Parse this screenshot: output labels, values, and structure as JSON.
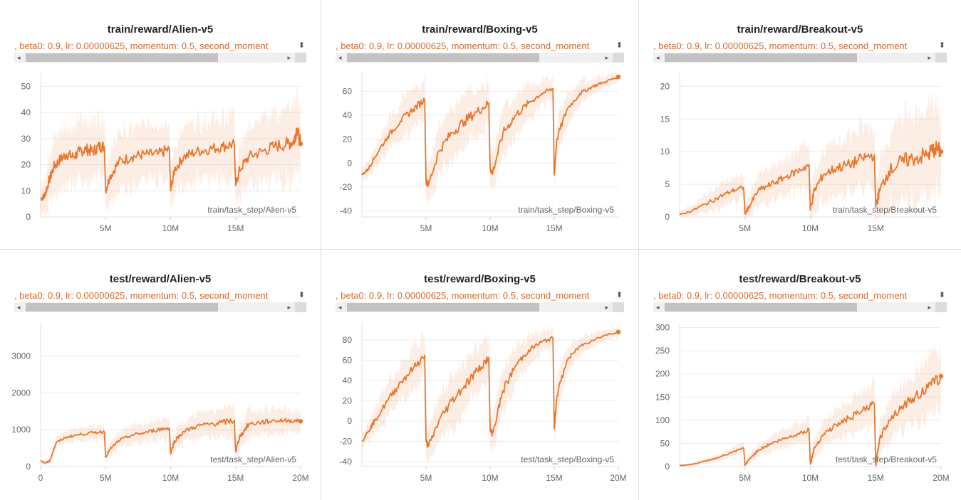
{
  "chart_data": [
    {
      "type": "line",
      "title": "train/reward/Alien-v5",
      "legend": ", beta0: 0.9, lr: 0.00000625, momentum: 0.5, second_moment",
      "xlabel": "train/task_step/Alien-v5",
      "xlim": [
        0,
        20000000
      ],
      "ylim": [
        0,
        55
      ],
      "xticks": [
        {
          "v": 5000000,
          "label": "5M"
        },
        {
          "v": 10000000,
          "label": "10M"
        },
        {
          "v": 15000000,
          "label": "15M"
        }
      ],
      "yticks": [
        0,
        10,
        20,
        30,
        40,
        50
      ],
      "series": [
        {
          "color": "#e8762d",
          "x": [
            0,
            300000,
            600000,
            1000000,
            1500000,
            2000000,
            2500000,
            3000000,
            3500000,
            4000000,
            4500000,
            4900000,
            5000000,
            5300000,
            6000000,
            7000000,
            8000000,
            9000000,
            9900000,
            10000000,
            10300000,
            11000000,
            12000000,
            13000000,
            14000000,
            14900000,
            15000000,
            15300000,
            16000000,
            17000000,
            18000000,
            19000000,
            19500000,
            19700000,
            20000000
          ],
          "y": [
            7,
            8,
            13,
            19,
            22,
            24,
            23,
            25,
            26,
            25,
            27,
            27,
            10,
            15,
            21,
            23,
            24,
            24,
            26,
            10,
            18,
            23,
            25,
            26,
            27,
            28,
            12,
            18,
            23,
            25,
            27,
            28,
            29,
            34,
            28
          ],
          "band": [
            6,
            8,
            10,
            12,
            12,
            12,
            12,
            13,
            13,
            13,
            13,
            13,
            8,
            10,
            12,
            12,
            12,
            12,
            13,
            8,
            10,
            12,
            12,
            12,
            13,
            13,
            9,
            11,
            12,
            13,
            14,
            15,
            16,
            16,
            15
          ]
        }
      ]
    },
    {
      "type": "line",
      "title": "train/reward/Boxing-v5",
      "legend": ", beta0: 0.9, lr: 0.00000625, momentum: 0.5, second_moment",
      "xlabel": "train/task_step/Boxing-v5",
      "xlim": [
        0,
        20000000
      ],
      "ylim": [
        -45,
        75
      ],
      "xticks": [
        {
          "v": 5000000,
          "label": "5M"
        },
        {
          "v": 10000000,
          "label": "10M"
        },
        {
          "v": 15000000,
          "label": "15M"
        }
      ],
      "yticks": [
        -40,
        -20,
        0,
        20,
        40,
        60
      ],
      "series": [
        {
          "color": "#e8762d",
          "x": [
            0,
            500000,
            1000000,
            2000000,
            3000000,
            4000000,
            4900000,
            5000000,
            5200000,
            6000000,
            7000000,
            8000000,
            9000000,
            9900000,
            10000000,
            10200000,
            11000000,
            12000000,
            13000000,
            14000000,
            14900000,
            15000000,
            15200000,
            16000000,
            17000000,
            18000000,
            19000000,
            20000000
          ],
          "y": [
            -10,
            -5,
            5,
            22,
            35,
            45,
            53,
            -15,
            -18,
            10,
            25,
            35,
            43,
            50,
            -5,
            -8,
            25,
            40,
            50,
            58,
            62,
            -10,
            20,
            45,
            58,
            64,
            68,
            72
          ],
          "band": [
            6,
            8,
            10,
            14,
            16,
            18,
            18,
            15,
            18,
            22,
            25,
            25,
            22,
            20,
            15,
            18,
            22,
            20,
            16,
            12,
            10,
            12,
            18,
            14,
            10,
            8,
            6,
            5
          ]
        }
      ]
    },
    {
      "type": "line",
      "title": "train/reward/Breakout-v5",
      "legend": ", beta0: 0.9, lr: 0.00000625, momentum: 0.5, second_moment",
      "xlabel": "train/task_step/Breakout-v5",
      "xlim": [
        0,
        20000000
      ],
      "ylim": [
        0,
        22
      ],
      "xticks": [
        {
          "v": 5000000,
          "label": "5M"
        },
        {
          "v": 10000000,
          "label": "10M"
        },
        {
          "v": 15000000,
          "label": "15M"
        }
      ],
      "yticks": [
        0,
        5,
        10,
        15,
        20
      ],
      "series": [
        {
          "color": "#e8762d",
          "x": [
            0,
            1000000,
            2000000,
            3000000,
            4000000,
            4900000,
            5000000,
            5300000,
            6000000,
            7000000,
            8000000,
            9000000,
            9900000,
            10000000,
            10300000,
            11000000,
            12000000,
            13000000,
            14000000,
            14900000,
            15000000,
            15300000,
            16000000,
            17000000,
            18000000,
            19000000,
            19500000,
            20000000
          ],
          "y": [
            0.3,
            1,
            2,
            3,
            4,
            4.5,
            0.5,
            1.5,
            4,
            5,
            6,
            7,
            8,
            1,
            4,
            6.5,
            7.5,
            8,
            9,
            9.5,
            1.5,
            4,
            7,
            8.5,
            9,
            9.5,
            10.5,
            10
          ],
          "band": [
            0.5,
            1,
            1.5,
            2,
            2,
            2,
            1.5,
            2,
            2.5,
            3,
            3,
            3.5,
            4,
            3,
            3.5,
            4,
            4.5,
            5,
            5,
            5,
            4,
            5,
            6,
            7,
            7,
            8,
            8,
            7
          ]
        }
      ]
    },
    {
      "type": "line",
      "title": "test/reward/Alien-v5",
      "legend": ", beta0: 0.9, lr: 0.00000625, momentum: 0.5, second_moment",
      "xlabel": "test/task_step/Alien-v5",
      "xlim": [
        0,
        20000000
      ],
      "ylim": [
        0,
        3900
      ],
      "xticks": [
        {
          "v": 0,
          "label": "0"
        },
        {
          "v": 5000000,
          "label": "5M"
        },
        {
          "v": 10000000,
          "label": "10M"
        },
        {
          "v": 15000000,
          "label": "15M"
        },
        {
          "v": 20000000,
          "label": "20M"
        }
      ],
      "yticks": [
        0,
        1000,
        2000,
        3000
      ],
      "series": [
        {
          "color": "#e8762d",
          "x": [
            0,
            300000,
            700000,
            1200000,
            2000000,
            3000000,
            4000000,
            4900000,
            5000000,
            5300000,
            6000000,
            7000000,
            8000000,
            9000000,
            9900000,
            10000000,
            10300000,
            11000000,
            12000000,
            13000000,
            14000000,
            14900000,
            15000000,
            15300000,
            16000000,
            17000000,
            18000000,
            19000000,
            20000000
          ],
          "y": [
            150,
            100,
            150,
            650,
            800,
            870,
            920,
            950,
            250,
            450,
            700,
            850,
            920,
            1000,
            1050,
            350,
            700,
            950,
            1100,
            1150,
            1200,
            1250,
            400,
            800,
            1150,
            1200,
            1250,
            1250,
            1230
          ],
          "band": [
            60,
            60,
            100,
            150,
            180,
            200,
            220,
            220,
            150,
            200,
            250,
            260,
            280,
            300,
            320,
            250,
            300,
            320,
            360,
            400,
            450,
            500,
            350,
            380,
            420,
            400,
            360,
            320,
            300
          ]
        }
      ]
    },
    {
      "type": "line",
      "title": "test/reward/Boxing-v5",
      "legend": ", beta0: 0.9, lr: 0.00000625, momentum: 0.5, second_moment",
      "xlabel": "test/task_step/Boxing-v5",
      "xlim": [
        0,
        20000000
      ],
      "ylim": [
        -45,
        97
      ],
      "xticks": [
        {
          "v": 5000000,
          "label": "5M"
        },
        {
          "v": 10000000,
          "label": "10M"
        },
        {
          "v": 15000000,
          "label": "15M"
        },
        {
          "v": 20000000,
          "label": "20M"
        }
      ],
      "yticks": [
        -40,
        -20,
        0,
        20,
        40,
        60,
        80
      ],
      "series": [
        {
          "color": "#e8762d",
          "x": [
            0,
            500000,
            1000000,
            2000000,
            3000000,
            4000000,
            4900000,
            5000000,
            5200000,
            6000000,
            7000000,
            8000000,
            9000000,
            9900000,
            10000000,
            10200000,
            11000000,
            12000000,
            13000000,
            14000000,
            14900000,
            15000000,
            15200000,
            16000000,
            17000000,
            18000000,
            19000000,
            20000000
          ],
          "y": [
            -20,
            -10,
            0,
            20,
            38,
            52,
            65,
            -20,
            -25,
            0,
            20,
            35,
            50,
            63,
            -10,
            -12,
            30,
            55,
            70,
            78,
            82,
            -8,
            25,
            60,
            74,
            80,
            85,
            88
          ],
          "band": [
            8,
            10,
            14,
            18,
            20,
            22,
            22,
            18,
            20,
            25,
            28,
            28,
            25,
            22,
            18,
            20,
            25,
            22,
            16,
            12,
            10,
            14,
            20,
            14,
            10,
            8,
            6,
            5
          ]
        }
      ]
    },
    {
      "type": "line",
      "title": "test/reward/Breakout-v5",
      "legend": ", beta0: 0.9, lr: 0.00000625, momentum: 0.5, second_moment",
      "xlabel": "test/task_step/Breakout-v5",
      "xlim": [
        0,
        20000000
      ],
      "ylim": [
        0,
        310
      ],
      "xticks": [
        {
          "v": 5000000,
          "label": "5M"
        },
        {
          "v": 10000000,
          "label": "10M"
        },
        {
          "v": 15000000,
          "label": "15M"
        },
        {
          "v": 20000000,
          "label": "20M"
        }
      ],
      "yticks": [
        0,
        50,
        100,
        150,
        200,
        250,
        300
      ],
      "series": [
        {
          "color": "#e8762d",
          "x": [
            0,
            1000000,
            2000000,
            3000000,
            4000000,
            4900000,
            5000000,
            5300000,
            6000000,
            7000000,
            8000000,
            9000000,
            9900000,
            10000000,
            10300000,
            11000000,
            12000000,
            13000000,
            14000000,
            14900000,
            15000000,
            15300000,
            16000000,
            17000000,
            18000000,
            19000000,
            20000000
          ],
          "y": [
            2,
            5,
            12,
            20,
            30,
            40,
            3,
            15,
            35,
            50,
            60,
            70,
            80,
            5,
            40,
            70,
            90,
            105,
            120,
            135,
            3,
            60,
            100,
            130,
            150,
            170,
            195
          ],
          "band": [
            2,
            4,
            6,
            8,
            10,
            12,
            8,
            10,
            15,
            20,
            22,
            25,
            28,
            15,
            25,
            30,
            35,
            40,
            45,
            50,
            20,
            40,
            50,
            55,
            60,
            70,
            80
          ]
        }
      ]
    }
  ]
}
